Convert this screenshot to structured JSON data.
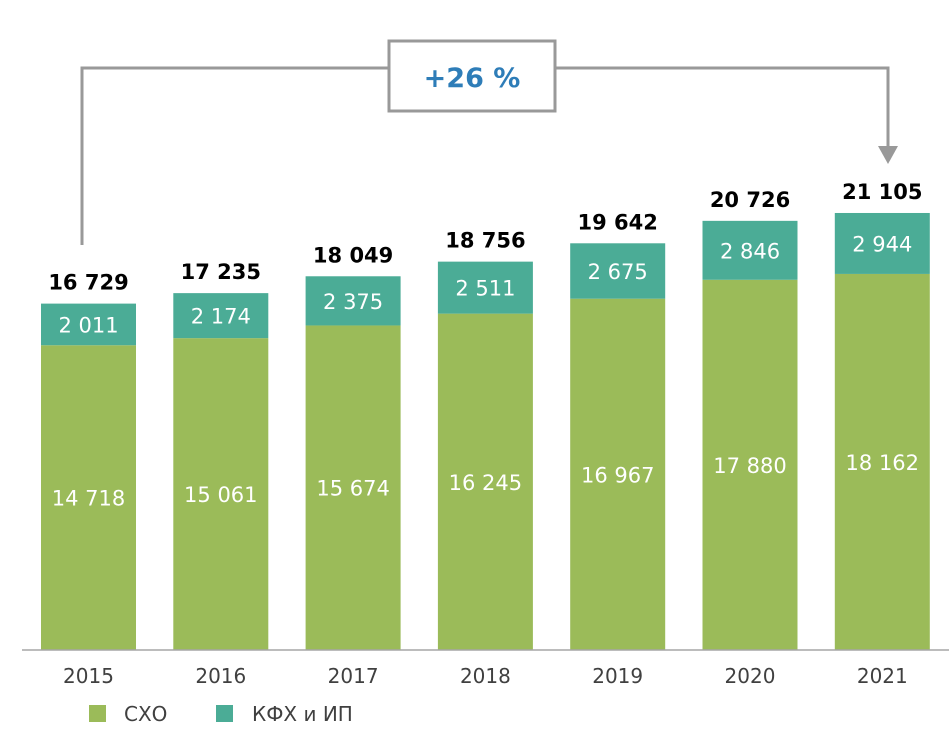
{
  "chart_data": {
    "type": "bar",
    "stacked": true,
    "title": "",
    "xlabel": "",
    "ylabel": "",
    "categories": [
      "2015",
      "2016",
      "2017",
      "2018",
      "2019",
      "2020",
      "2021"
    ],
    "series": [
      {
        "name": "СХО",
        "color": "#9BBB59",
        "values": [
          14718,
          15061,
          15674,
          16245,
          16967,
          17880,
          18162
        ],
        "labels": [
          "14 718",
          "15 061",
          "15 674",
          "16 245",
          "16 967",
          "17 880",
          "18 162"
        ]
      },
      {
        "name": "КФХ и ИП",
        "color": "#4BAC96",
        "values": [
          2011,
          2174,
          2375,
          2511,
          2675,
          2846,
          2944
        ],
        "labels": [
          "2 011",
          "2 174",
          "2 375",
          "2 511",
          "2 675",
          "2 846",
          "2 944"
        ]
      }
    ],
    "totals": [
      16729,
      17235,
      18049,
      18756,
      19642,
      20726,
      21105
    ],
    "total_labels": [
      "16 729",
      "17 235",
      "18 049",
      "18 756",
      "19 642",
      "20 726",
      "21 105"
    ],
    "ylim": [
      0,
      21105
    ],
    "grid": false,
    "legend": {
      "placement": "bottom-left",
      "entries": [
        "СХО",
        "КФХ и ИП"
      ]
    },
    "annotation": {
      "text": "+26 %",
      "from": "2015",
      "to": "2021",
      "color": "#2E7DB8",
      "line_color": "#999999"
    }
  }
}
